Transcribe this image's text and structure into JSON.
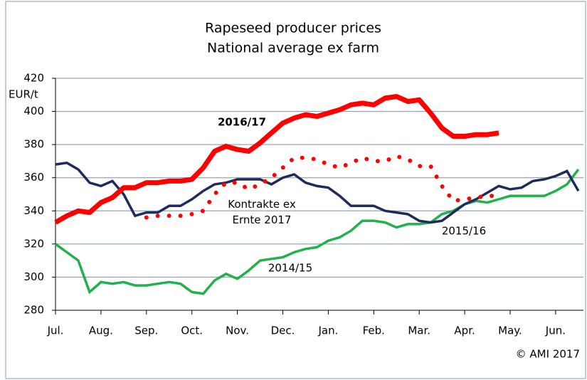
{
  "chart_data": {
    "type": "line",
    "title": "Rapeseed producer prices",
    "subtitle": "National average ex farm",
    "y_label": "EUR/t",
    "source": "© AMI 2017",
    "xlim": [
      0,
      11.6
    ],
    "xticks": [
      {
        "value": 0,
        "label": "Jul."
      },
      {
        "value": 1,
        "label": "Aug."
      },
      {
        "value": 2,
        "label": "Sep."
      },
      {
        "value": 3,
        "label": "Oct."
      },
      {
        "value": 4,
        "label": "Nov."
      },
      {
        "value": 5,
        "label": "Dec."
      },
      {
        "value": 6,
        "label": "Jan."
      },
      {
        "value": 7,
        "label": "Feb."
      },
      {
        "value": 8,
        "label": "Mar."
      },
      {
        "value": 9,
        "label": "Apr."
      },
      {
        "value": 10,
        "label": "May."
      },
      {
        "value": 11,
        "label": "Jun."
      }
    ],
    "ylim": [
      280,
      420
    ],
    "yticks": [
      280,
      300,
      320,
      340,
      360,
      380,
      400,
      420
    ],
    "grid": true,
    "series": [
      {
        "name": "2014/15",
        "color": "#22b14c",
        "style": "solid",
        "x": [
          0,
          0.25,
          0.5,
          0.75,
          1,
          1.25,
          1.5,
          1.75,
          2,
          2.25,
          2.5,
          2.75,
          3,
          3.25,
          3.5,
          3.75,
          4,
          4.25,
          4.5,
          4.75,
          5,
          5.25,
          5.5,
          5.75,
          6,
          6.25,
          6.5,
          6.75,
          7,
          7.25,
          7.5,
          7.75,
          8,
          8.25,
          8.5,
          8.75,
          9,
          9.25,
          9.5,
          9.75,
          10,
          10.25,
          10.5,
          10.75,
          11,
          11.25,
          11.5
        ],
        "values": [
          320,
          315,
          310,
          291,
          297,
          296,
          297,
          295,
          295,
          296,
          297,
          296,
          291,
          290,
          298,
          302,
          299,
          304,
          310,
          311,
          312,
          315,
          317,
          318,
          322,
          324,
          328,
          334,
          334,
          333,
          330,
          332,
          332,
          333,
          338,
          340,
          344,
          346,
          345,
          347,
          349,
          349,
          349,
          349,
          352,
          356,
          365
        ]
      },
      {
        "name": "2015/16",
        "color": "#1f2a5e",
        "style": "solid",
        "x": [
          0,
          0.25,
          0.5,
          0.75,
          1,
          1.25,
          1.5,
          1.75,
          2,
          2.25,
          2.5,
          2.75,
          3,
          3.25,
          3.5,
          3.75,
          4,
          4.25,
          4.5,
          4.75,
          5,
          5.25,
          5.5,
          5.75,
          6,
          6.25,
          6.5,
          6.75,
          7,
          7.25,
          7.5,
          7.75,
          8,
          8.25,
          8.5,
          8.75,
          9,
          9.25,
          9.5,
          9.75,
          10,
          10.25,
          10.5,
          10.75,
          11,
          11.25,
          11.5
        ],
        "values": [
          368,
          369,
          365,
          357,
          355,
          358,
          350,
          337,
          339,
          339,
          343,
          343,
          347,
          352,
          356,
          357,
          359,
          359,
          359,
          356,
          360,
          362,
          357,
          355,
          354,
          349,
          343,
          343,
          343,
          340,
          339,
          338,
          334,
          333,
          334,
          339,
          344,
          347,
          351,
          355,
          353,
          354,
          358,
          359,
          361,
          364,
          352
        ]
      },
      {
        "name": "2016/17",
        "color": "#ff0000",
        "style": "thick",
        "x": [
          0,
          0.25,
          0.5,
          0.75,
          1,
          1.25,
          1.5,
          1.75,
          2,
          2.25,
          2.5,
          2.75,
          3,
          3.25,
          3.5,
          3.75,
          4,
          4.25,
          4.5,
          4.75,
          5,
          5.25,
          5.5,
          5.75,
          6,
          6.25,
          6.5,
          6.75,
          7,
          7.25,
          7.5,
          7.75,
          8,
          8.25,
          8.5,
          8.75,
          9,
          9.25,
          9.5,
          9.75
        ],
        "values": [
          333,
          337,
          340,
          339,
          345,
          348,
          354,
          354,
          357,
          357,
          358,
          358,
          359,
          366,
          376,
          379,
          377,
          376,
          381,
          387,
          393,
          396,
          398,
          397,
          399,
          401,
          404,
          405,
          404,
          408,
          409,
          406,
          407,
          399,
          390,
          385,
          385,
          386,
          386,
          387
        ]
      },
      {
        "name": "Kontrakte ex Ernte 2017",
        "color": "#ff0000",
        "style": "dotted",
        "x": [
          2,
          2.25,
          2.5,
          2.75,
          3,
          3.25,
          3.5,
          3.75,
          4,
          4.25,
          4.5,
          4.75,
          5,
          5.25,
          5.5,
          5.75,
          6,
          6.25,
          6.5,
          6.75,
          7,
          7.25,
          7.5,
          7.75,
          8,
          8.25,
          8.5,
          8.75,
          9,
          9.25,
          9.5,
          9.75
        ],
        "values": [
          336,
          337,
          337,
          337,
          338,
          340,
          350,
          357,
          357,
          353,
          356,
          360,
          366,
          372,
          372,
          371,
          368,
          366,
          369,
          372,
          370,
          370,
          373,
          371,
          367,
          367,
          355,
          346,
          347,
          348,
          349,
          349
        ]
      }
    ]
  }
}
